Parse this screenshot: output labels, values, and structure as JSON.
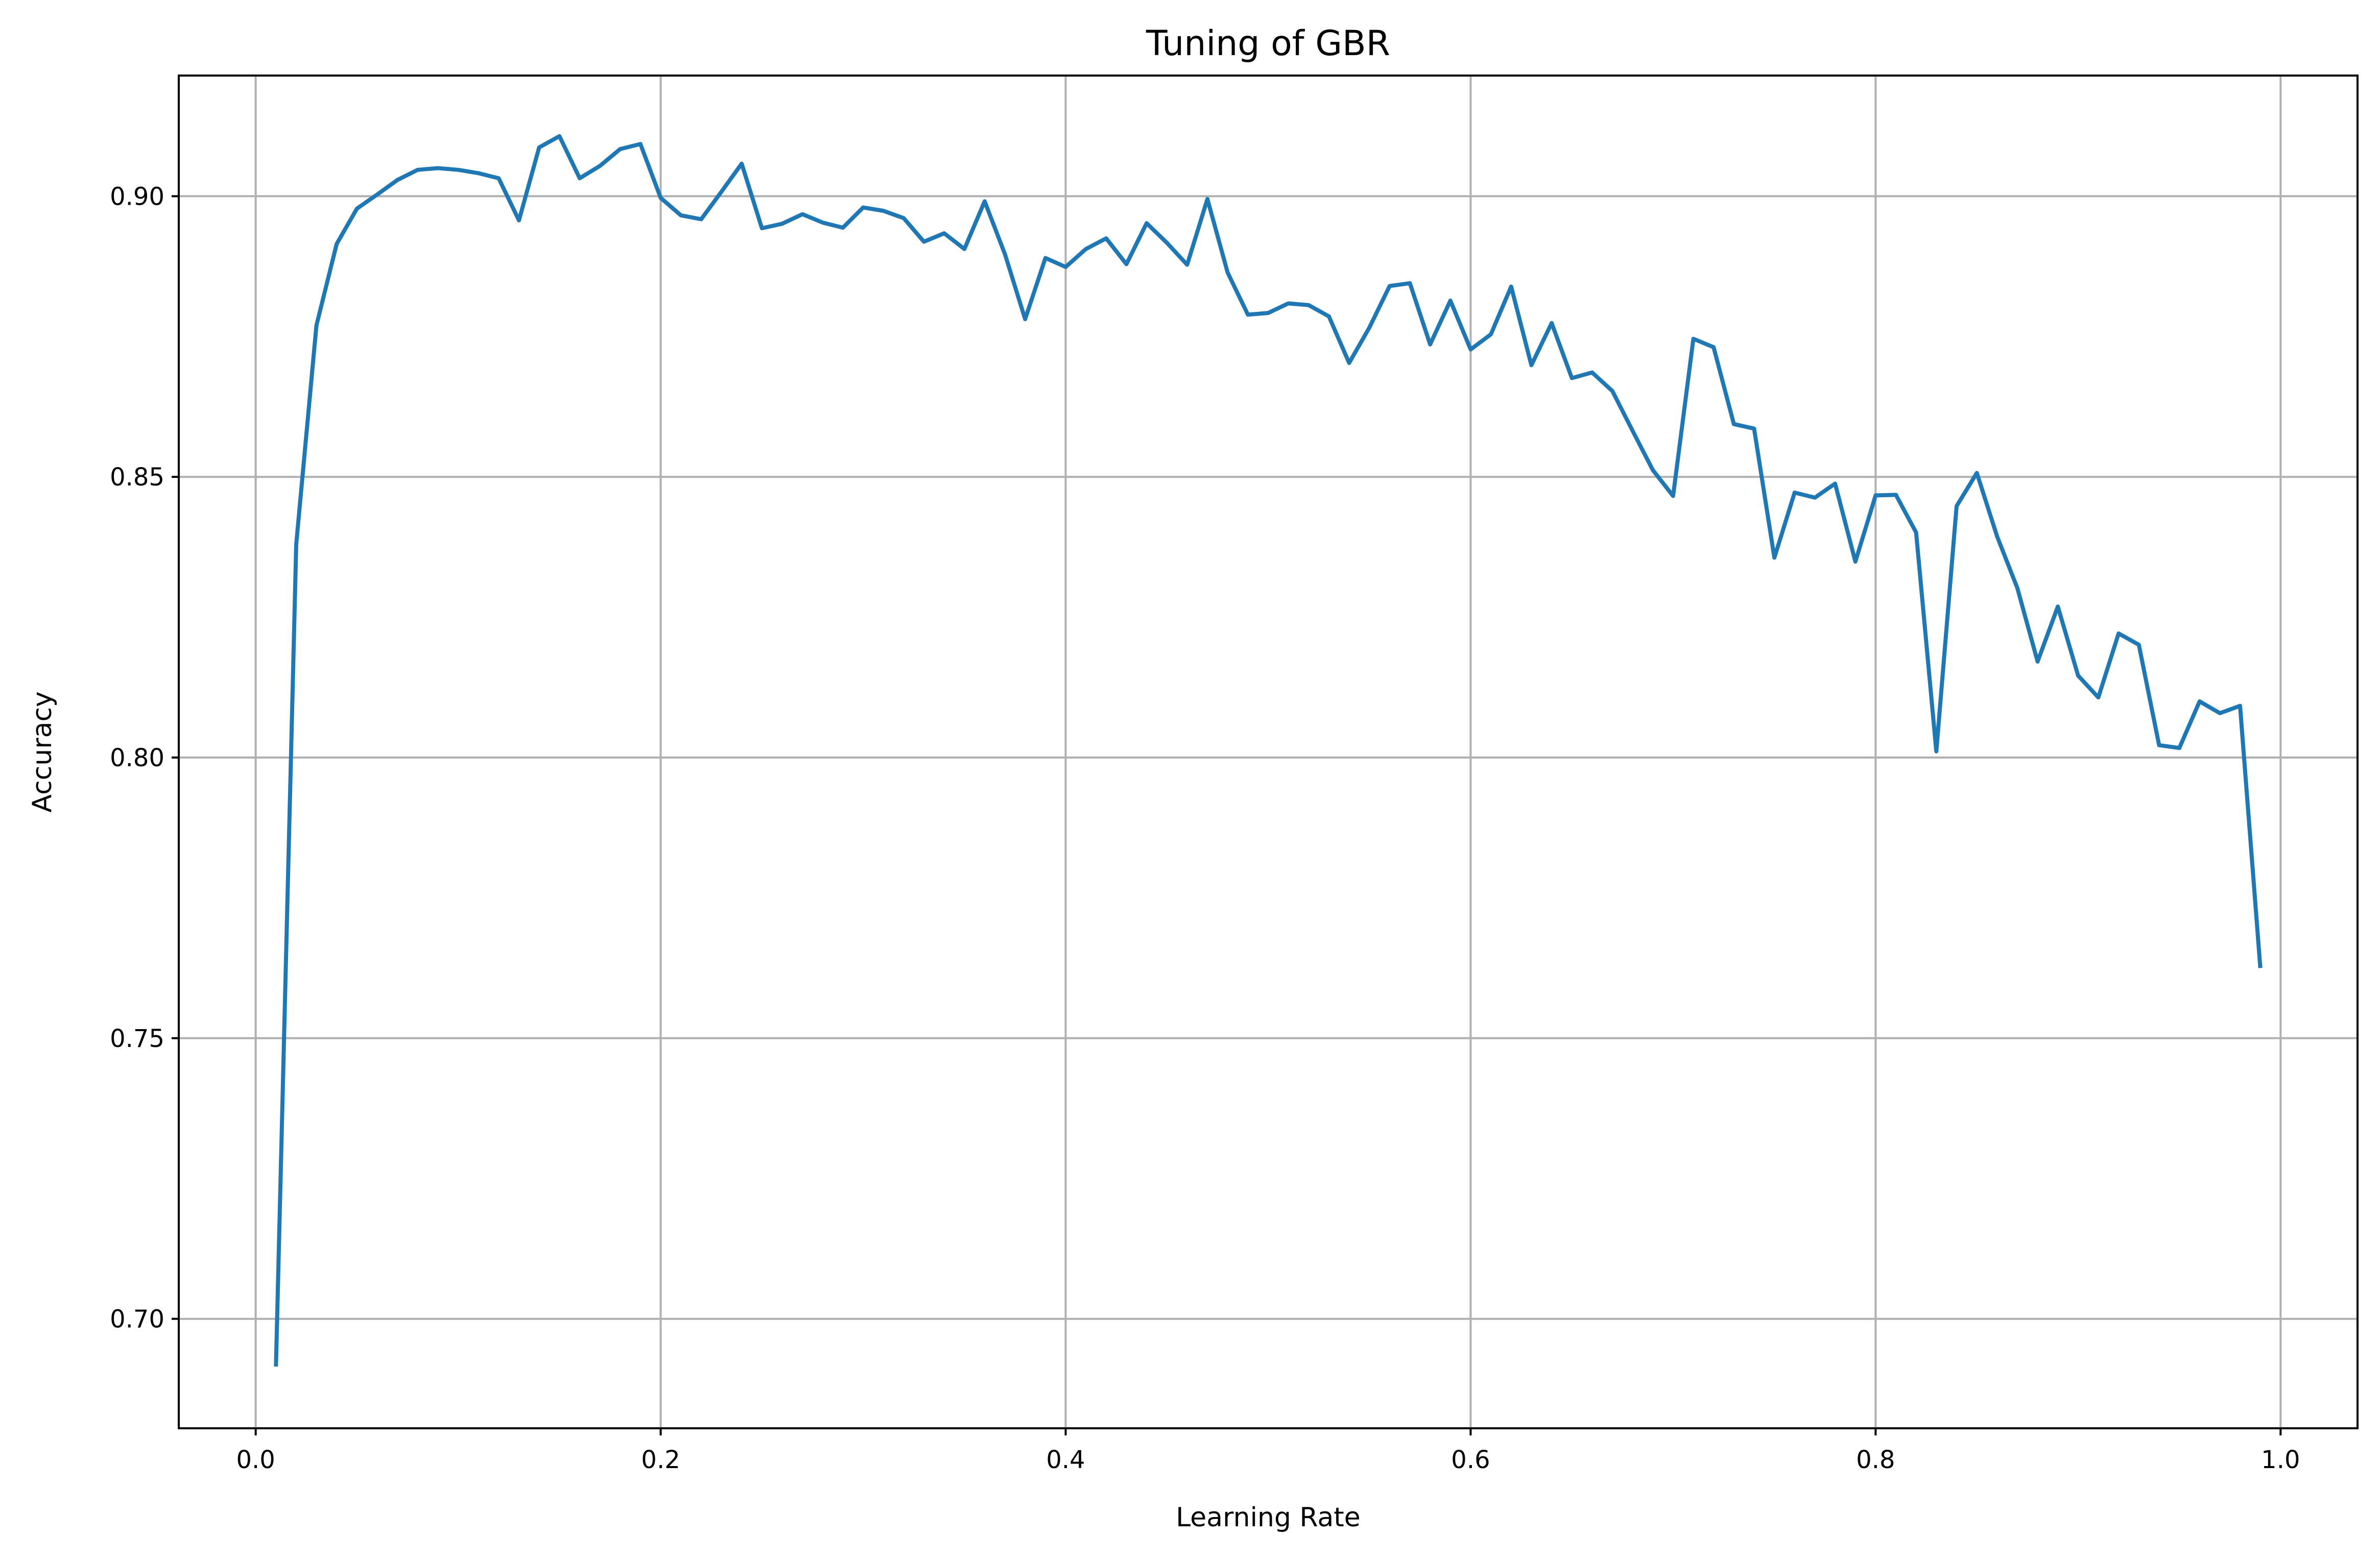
{
  "chart_data": {
    "type": "line",
    "title": "Tuning of GBR",
    "xlabel": "Learning Rate",
    "ylabel": "Accuracy",
    "xlim": [
      -0.038,
      1.038
    ],
    "ylim": [
      0.6805,
      0.9215
    ],
    "grid": true,
    "xticks": [
      0.0,
      0.2,
      0.4,
      0.6,
      0.8,
      1.0
    ],
    "xtick_labels": [
      "0.0",
      "0.2",
      "0.4",
      "0.6",
      "0.8",
      "1.0"
    ],
    "yticks": [
      0.7,
      0.75,
      0.8,
      0.85,
      0.9
    ],
    "ytick_labels": [
      "0.70",
      "0.75",
      "0.80",
      "0.85",
      "0.90"
    ],
    "line_color": "#1f77b4",
    "series": [
      {
        "x": [
          0.01,
          0.02,
          0.03,
          0.04,
          0.05,
          0.06,
          0.07,
          0.08,
          0.09,
          0.1,
          0.11,
          0.12,
          0.13,
          0.14,
          0.15,
          0.16,
          0.17,
          0.18,
          0.19,
          0.2,
          0.21,
          0.22,
          0.23,
          0.24,
          0.25,
          0.26,
          0.27,
          0.28,
          0.29,
          0.3,
          0.31,
          0.32,
          0.33,
          0.34,
          0.35,
          0.36,
          0.37,
          0.38,
          0.39,
          0.4,
          0.41,
          0.42,
          0.43,
          0.44,
          0.45,
          0.46,
          0.47,
          0.48,
          0.49,
          0.5,
          0.51,
          0.52,
          0.53,
          0.54,
          0.55,
          0.56,
          0.57,
          0.58,
          0.59,
          0.6,
          0.61,
          0.62,
          0.63,
          0.64,
          0.65,
          0.66,
          0.67,
          0.68,
          0.69,
          0.7,
          0.71,
          0.72,
          0.73,
          0.74,
          0.75,
          0.76,
          0.77,
          0.78,
          0.79,
          0.8,
          0.81,
          0.82,
          0.83,
          0.84,
          0.85,
          0.86,
          0.87,
          0.88,
          0.89,
          0.9,
          0.91,
          0.92,
          0.93,
          0.94,
          0.95,
          0.96,
          0.97,
          0.98,
          0.99
        ],
        "y": [
          0.6915,
          0.838,
          0.877,
          0.8915,
          0.8978,
          0.9003,
          0.9029,
          0.9047,
          0.905,
          0.9047,
          0.9041,
          0.9032,
          0.8957,
          0.9087,
          0.9107,
          0.9032,
          0.9054,
          0.9084,
          0.9093,
          0.8997,
          0.8966,
          0.8959,
          0.9008,
          0.9058,
          0.8943,
          0.8951,
          0.8968,
          0.8953,
          0.8944,
          0.898,
          0.8974,
          0.8961,
          0.8919,
          0.8934,
          0.8906,
          0.8991,
          0.8897,
          0.8781,
          0.889,
          0.8874,
          0.8906,
          0.8925,
          0.8879,
          0.8952,
          0.8917,
          0.8878,
          0.8995,
          0.8864,
          0.8789,
          0.8792,
          0.8809,
          0.8806,
          0.8786,
          0.8703,
          0.8766,
          0.884,
          0.8845,
          0.8736,
          0.8814,
          0.8727,
          0.8754,
          0.8839,
          0.8699,
          0.8774,
          0.8676,
          0.8686,
          0.8653,
          0.8582,
          0.8512,
          0.8466,
          0.8746,
          0.8731,
          0.8594,
          0.8586,
          0.8356,
          0.8472,
          0.8463,
          0.8488,
          0.8349,
          0.8467,
          0.8468,
          0.8401,
          0.8011,
          0.8448,
          0.8507,
          0.8394,
          0.8302,
          0.8171,
          0.8269,
          0.8146,
          0.8107,
          0.8221,
          0.8201,
          0.8022,
          0.8017,
          0.81,
          0.8079,
          0.8092,
          0.7625
        ]
      }
    ]
  }
}
